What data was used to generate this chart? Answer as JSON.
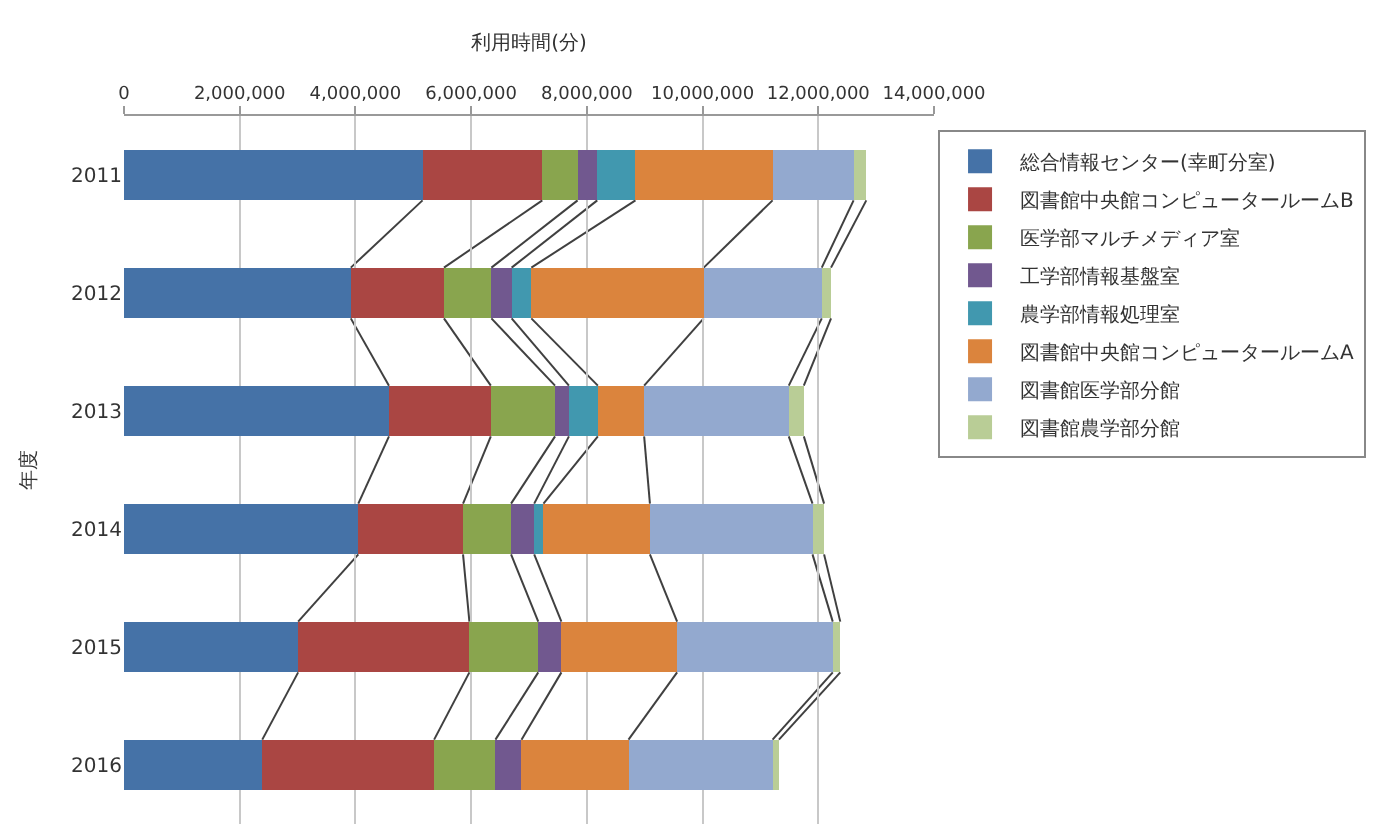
{
  "chart_data": {
    "type": "bar",
    "orientation": "horizontal",
    "stacked": true,
    "xlabel": "利用時間(分)",
    "ylabel": "年度",
    "categories": [
      "2011",
      "2012",
      "2013",
      "2014",
      "2015",
      "2016"
    ],
    "series": [
      {
        "name": "総合情報センター(幸町分室)",
        "color": "#4572a7",
        "values": [
          5160000,
          3920000,
          4580000,
          4050000,
          3010000,
          2390000
        ]
      },
      {
        "name": "図書館中央館コンピュータールームB",
        "color": "#aa4643",
        "values": [
          2070000,
          1610000,
          1760000,
          1810000,
          2960000,
          2970000
        ]
      },
      {
        "name": "医学部マルチメディア室",
        "color": "#89a54e",
        "values": [
          610000,
          820000,
          1110000,
          830000,
          1190000,
          1060000
        ]
      },
      {
        "name": "工学部情報基盤室",
        "color": "#71588f",
        "values": [
          340000,
          350000,
          240000,
          400000,
          400000,
          450000
        ]
      },
      {
        "name": "農学部情報処理室",
        "color": "#4198af",
        "values": [
          660000,
          340000,
          500000,
          160000,
          null,
          null
        ]
      },
      {
        "name": "図書館中央館コンピュータールームA",
        "color": "#db843d",
        "values": [
          2370000,
          2980000,
          800000,
          1840000,
          2000000,
          1850000
        ]
      },
      {
        "name": "図書館医学部分館",
        "color": "#93a9cf",
        "values": [
          1400000,
          2040000,
          2500000,
          2810000,
          2690000,
          2490000
        ]
      },
      {
        "name": "図書館農学部分館",
        "color": "#b9cd96",
        "values": [
          220000,
          160000,
          260000,
          200000,
          130000,
          110000
        ]
      }
    ],
    "xlim": [
      0,
      14000000
    ],
    "xticks": [
      0,
      {
        "value": 2000000,
        "label": "2,000,000"
      },
      {
        "value": 4000000,
        "label": "4,000,000"
      },
      {
        "value": 6000000,
        "label": "6,000,000"
      },
      {
        "value": 8000000,
        "label": "8,000,000"
      },
      {
        "value": 10000000,
        "label": "10,000,000"
      },
      {
        "value": 12000000,
        "label": "12,000,000"
      },
      {
        "value": 14000000,
        "label": "14,000,000"
      }
    ],
    "grid": "x",
    "legend": "right"
  }
}
